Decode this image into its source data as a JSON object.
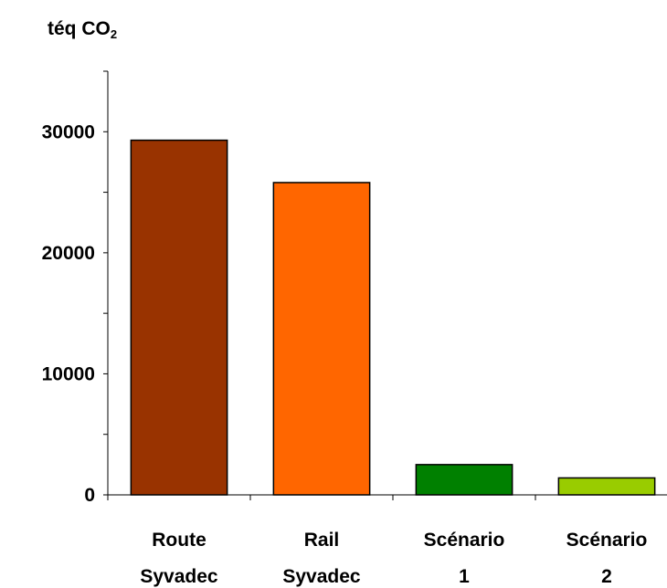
{
  "chart_data": {
    "type": "bar",
    "ylabel_main": "téq CO",
    "ylabel_sub": "2",
    "categories": [
      [
        "Route",
        "Syvadec"
      ],
      [
        "Rail",
        "Syvadec"
      ],
      [
        "Scénario",
        "1"
      ],
      [
        "Scénario",
        "2"
      ]
    ],
    "values": [
      29300,
      25800,
      2500,
      1400
    ],
    "colors": [
      "#993300",
      "#FF6600",
      "#008000",
      "#99CC00"
    ],
    "ylim": [
      0,
      35000
    ],
    "yticks": [
      0,
      10000,
      20000,
      30000
    ],
    "ytick_labels": [
      "0",
      "10000",
      "20000",
      "30000"
    ],
    "minor_step": 5000,
    "grid": false,
    "legend": "none"
  }
}
